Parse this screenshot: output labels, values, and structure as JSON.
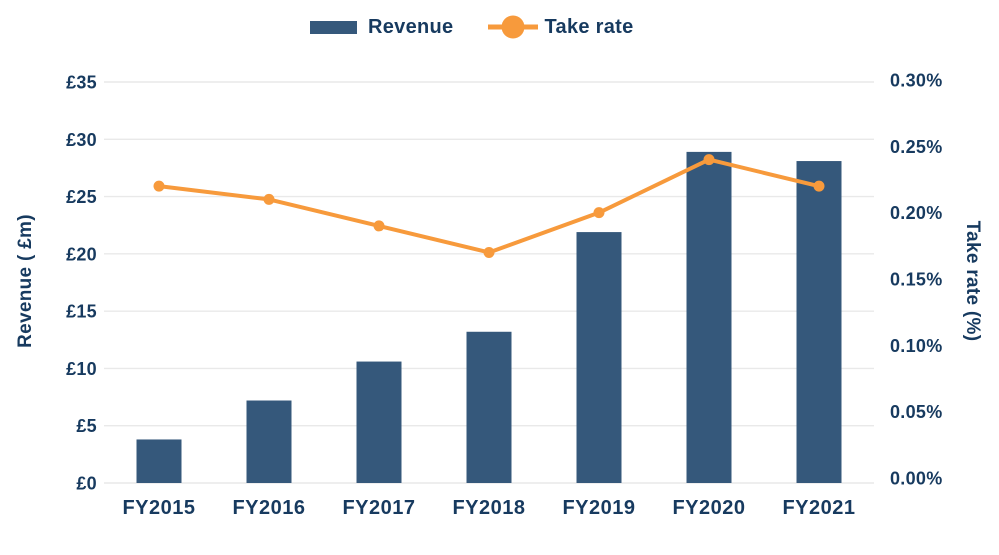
{
  "page": {
    "background": "#FFFFFF"
  },
  "legend": {
    "position": "top-center",
    "items": [
      {
        "label": "Revenue",
        "marker": "bar-swatch",
        "color": "#35587B"
      },
      {
        "label": "Take rate",
        "marker": "line-circle",
        "color": "#F79A3C"
      }
    ]
  },
  "chart_data": {
    "type": "combo-bar-line",
    "title": "",
    "xlabel": "",
    "categories": [
      "FY2015",
      "FY2016",
      "FY2017",
      "FY2018",
      "FY2019",
      "FY2020",
      "FY2021"
    ],
    "series": [
      {
        "name": "Revenue",
        "type": "bar",
        "axis": "left",
        "color": "#35587B",
        "values": [
          3.8,
          7.2,
          10.6,
          13.2,
          21.9,
          28.9,
          28.1
        ]
      },
      {
        "name": "Take rate",
        "type": "line",
        "axis": "right",
        "color": "#F79A3C",
        "values": [
          0.22,
          0.21,
          0.19,
          0.17,
          0.2,
          0.24,
          0.22
        ]
      }
    ],
    "left_axis": {
      "title": "Revenue ( £m)",
      "min": 0,
      "max": 35,
      "step": 5,
      "ticks": [
        "£0",
        "£5",
        "£10",
        "£15",
        "£20",
        "£25",
        "£30",
        "£35"
      ]
    },
    "right_axis": {
      "title": "Take rate (%)",
      "min": 0,
      "max": 0.3,
      "step": 0.05,
      "ticks": [
        "0.00%",
        "0.05%",
        "0.10%",
        "0.15%",
        "0.20%",
        "0.25%",
        "0.30%"
      ]
    },
    "grid": true,
    "legend_position": "top-center",
    "colors": {
      "text": "#173A5F",
      "gridline": "#E9E9E9",
      "bar": "#35587B",
      "line": "#F79A3C"
    }
  }
}
